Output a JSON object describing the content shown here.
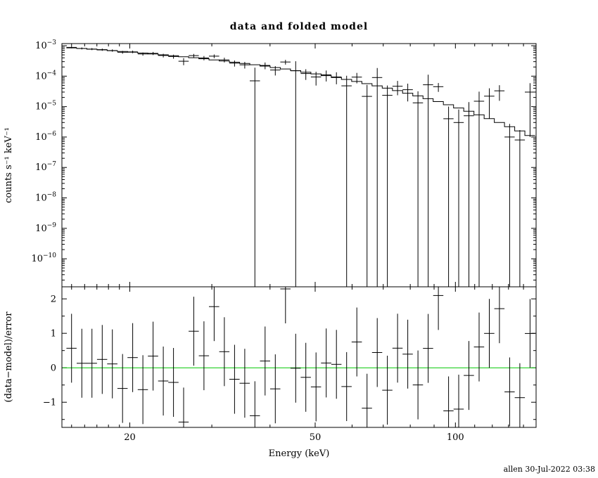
{
  "title": "data and folded model",
  "xlabel": "Energy (keV)",
  "timestamp": "allen 30-Jul-2022 03:38",
  "chart_data": {
    "type": "scatter",
    "x_scale": "log",
    "x_range": [
      14.3,
      149
    ],
    "x_ticks": [
      20,
      50,
      100
    ],
    "x_minor_ticks": [
      15,
      16,
      17,
      18,
      19,
      30,
      40,
      60,
      70,
      80,
      90,
      110,
      120,
      130,
      140
    ],
    "bin_half_width_frac": 0.0253,
    "grid": "off",
    "legend": "none",
    "top_panel": {
      "ylabel": "counts s⁻¹ keV⁻¹",
      "y_scale": "log",
      "y_range": [
        1.2e-11,
        0.001175
      ],
      "y_tick_exponents": [
        -3,
        -4,
        -5,
        -6,
        -7,
        -8,
        -9,
        -10
      ]
    },
    "bottom_panel": {
      "ylabel": "(data−model)/error",
      "y_scale": "linear",
      "y_range": [
        -1.73,
        2.35
      ],
      "y_ticks": [
        2,
        1,
        0,
        -1
      ],
      "y_minor_ticks": [
        -1.5,
        -0.5,
        0.5,
        1.5
      ],
      "zero_line_color": "#00c800",
      "residual_bar_halfheight": 1
    },
    "points": {
      "e": [
        15.0,
        15.78,
        16.59,
        17.45,
        18.35,
        19.3,
        20.29,
        21.34,
        22.44,
        23.6,
        24.82,
        26.1,
        27.44,
        28.86,
        30.35,
        31.92,
        33.57,
        35.3,
        37.12,
        39.04,
        41.06,
        43.18,
        45.41,
        47.75,
        50.22,
        52.81,
        55.54,
        58.41,
        61.43,
        64.6,
        67.94,
        71.45,
        75.14,
        79.02,
        83.1,
        87.39,
        91.91,
        96.66,
        101.65,
        106.9,
        112.42,
        118.23,
        124.33,
        130.76,
        137.51,
        144.61
      ],
      "model": [
        0.00085,
        0.000808,
        0.000768,
        0.000727,
        0.000688,
        0.000649,
        0.000611,
        0.000574,
        0.000538,
        0.000503,
        0.000469,
        0.000435,
        0.000404,
        0.000373,
        0.000343,
        0.000315,
        0.000287,
        0.000262,
        0.000237,
        0.000214,
        0.000192,
        0.000172,
        0.000152,
        0.000135,
        0.000119,
        0.000104,
        9e-05,
        7.8e-05,
        6.68e-05,
        5.68e-05,
        4.8e-05,
        4.03e-05,
        3.35e-05,
        2.75e-05,
        2.25e-05,
        1.82e-05,
        1.46e-05,
        1.15e-05,
        9e-06,
        7e-06,
        5.34e-06,
        4.03e-06,
        2.99e-06,
        2.19e-06,
        1.58e-06,
        1.12e-06
      ],
      "counts": [
        0.000884,
        0.000816,
        0.000776,
        0.000742,
        0.000695,
        0.00061,
        0.000629,
        0.000534,
        0.00056,
        0.000478,
        0.000441,
        0.000309,
        0.000473,
        0.000395,
        0.000453,
        0.000343,
        0.000267,
        0.000236,
        7e-05,
        0.000225,
        0.000159,
        0.000291,
        0.00015,
        0.000122,
        9.4e-05,
        0.00011,
        9.4e-05,
        4.8e-05,
        9.3e-05,
        2.16e-05,
        9e-05,
        2.34e-05,
        4.66e-05,
        3.58e-05,
        1.33e-05,
        5.2e-05,
        4.5e-05,
        4e-06,
        3e-06,
        5e-06,
        1.5e-05,
        2.2e-05,
        3.3e-05,
        1e-06,
        8e-07,
        3e-05
      ],
      "counts_err": [
        6e-05,
        6.1e-05,
        6.1e-05,
        6.2e-05,
        6.2e-05,
        6.5e-05,
        6.1e-05,
        6.3e-05,
        6.5e-05,
        6.5e-05,
        6.6e-05,
        8e-05,
        6.5e-05,
        6.3e-05,
        6.2e-05,
        6e-05,
        6e-05,
        5.8e-05,
        0.00012,
        5.6e-05,
        5.4e-05,
        5.2e-05,
        0.00016,
        4.7e-05,
        4.5e-05,
        4.3e-05,
        4e-05,
        5.5e-05,
        3.5e-05,
        3e-05,
        9.5e-05,
        2.6e-05,
        2.3e-05,
        2.1e-05,
        1.85e-05,
        6e-05,
        1.45e-05,
        6e-06,
        5e-06,
        9e-06,
        1.6e-05,
        1.8e-05,
        1.75e-05,
        1.7e-06,
        9e-07,
        2.9e-05
      ]
    }
  }
}
